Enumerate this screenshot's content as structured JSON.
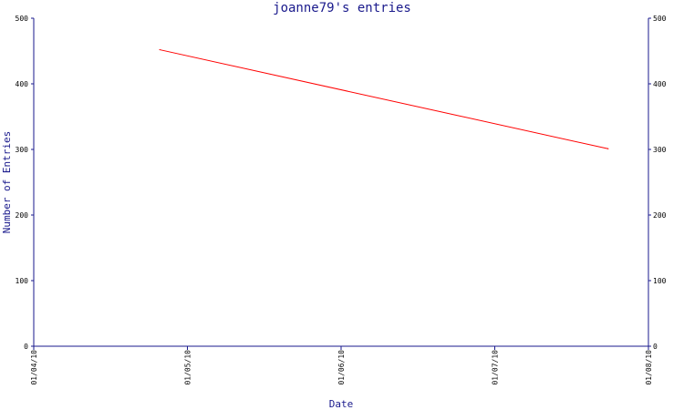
{
  "chart_data": {
    "type": "line",
    "title": "joanne79's entries",
    "xlabel": "Date",
    "ylabel": "Number of Entries",
    "x_ticks": [
      "01/04/10",
      "01/05/10",
      "01/06/10",
      "01/07/10",
      "01/08/10"
    ],
    "y_ticks": [
      0,
      100,
      200,
      300,
      400,
      500
    ],
    "ylim": [
      0,
      500
    ],
    "xlim": [
      "2010-04-01",
      "2010-08-01"
    ],
    "grid": false,
    "legend": "none",
    "series": [
      {
        "color": "#ff0000",
        "points": [
          {
            "x": "2010-04-26",
            "y": 452
          },
          {
            "x": "2010-07-24",
            "y": 301
          }
        ]
      }
    ]
  },
  "colors": {
    "axis": "#1a1a8c",
    "title": "#1a1a8c",
    "series": "#ff0000",
    "background": "#ffffff"
  }
}
